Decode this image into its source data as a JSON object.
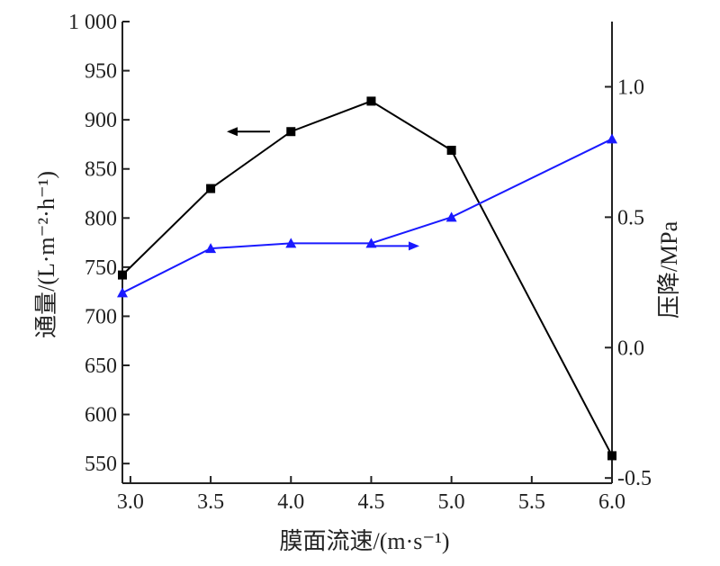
{
  "chart_data": {
    "type": "line",
    "title": "",
    "xlabel": "膜面流速/(m·s⁻¹)",
    "ylabel_left": "通量/(L·m⁻²·h⁻¹)",
    "ylabel_right": "压降/MPa",
    "xlim": [
      2.95,
      6.0
    ],
    "ylim_left": [
      530,
      1000
    ],
    "ylim_right": [
      -0.52,
      1.25
    ],
    "x_ticks": [
      3.0,
      3.5,
      4.0,
      4.5,
      5.0,
      5.5,
      6.0
    ],
    "x_tick_labels": [
      "3.0",
      "3.5",
      "4.0",
      "4.5",
      "5.0",
      "5.5",
      "6.0"
    ],
    "y_left_ticks": [
      550,
      600,
      650,
      700,
      750,
      800,
      850,
      900,
      950,
      1000
    ],
    "y_left_tick_labels": [
      "550",
      "600",
      "650",
      "700",
      "750",
      "800",
      "850",
      "900",
      "950",
      "1 000"
    ],
    "y_right_ticks": [
      -0.5,
      0.0,
      0.5,
      1.0
    ],
    "y_right_tick_labels": [
      "-0.5",
      "0.0",
      "0.5",
      "1.0"
    ],
    "grid": false,
    "legend": "none",
    "series": [
      {
        "axis": "left",
        "marker": "square",
        "color": "#000000",
        "x": [
          2.95,
          3.5,
          4.0,
          4.5,
          5.0,
          6.0
        ],
        "values": [
          742,
          830,
          888,
          919,
          869,
          558
        ],
        "indicator_arrow": "left"
      },
      {
        "axis": "right",
        "marker": "triangle",
        "color": "#1a1aff",
        "x": [
          2.95,
          3.5,
          4.0,
          4.5,
          5.0,
          6.0
        ],
        "values": [
          0.21,
          0.38,
          0.4,
          0.4,
          0.5,
          0.8
        ],
        "indicator_arrow": "right"
      }
    ]
  }
}
